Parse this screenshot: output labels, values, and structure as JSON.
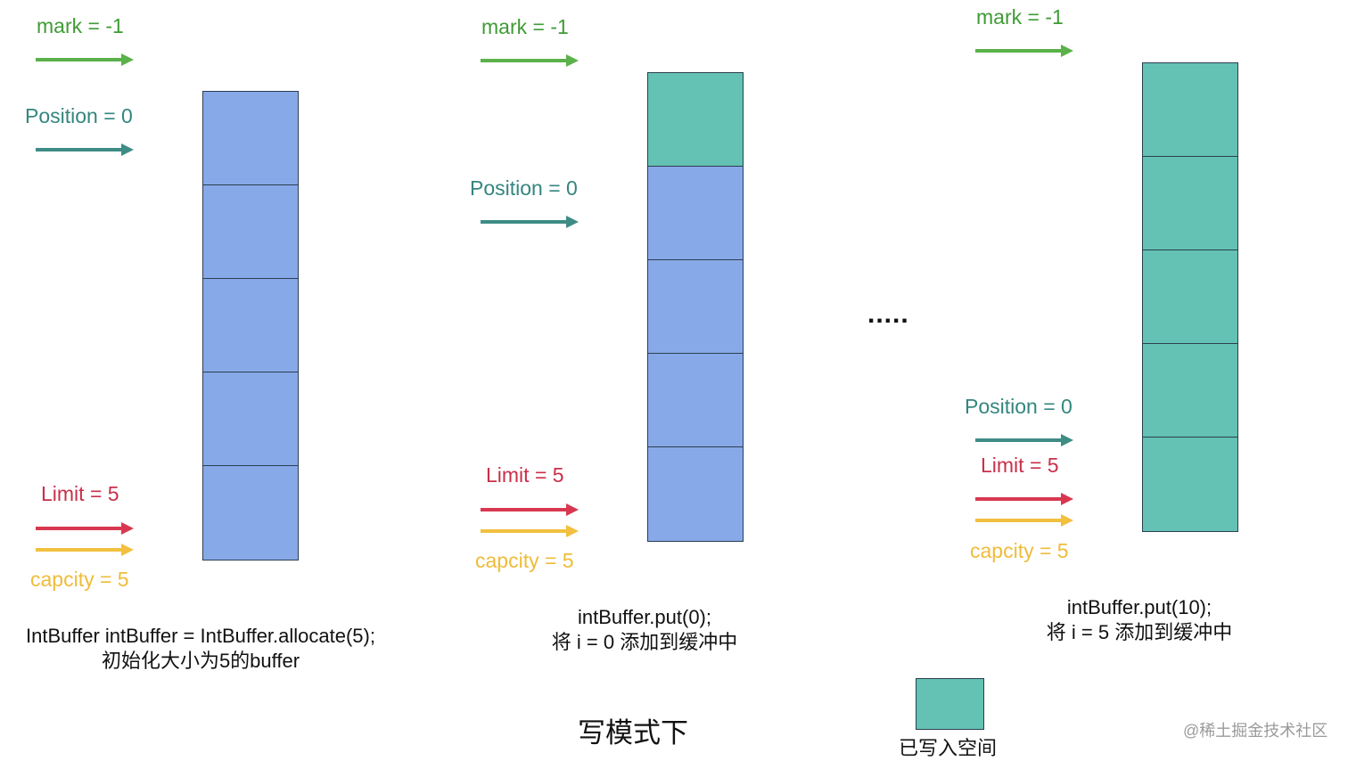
{
  "panels": [
    {
      "mark_label": "mark = -1",
      "position_label": "Position = 0",
      "limit_label": "Limit = 5",
      "capacity_label": "capcity = 5",
      "cells": [
        "empty",
        "empty",
        "empty",
        "empty",
        "empty"
      ],
      "caption_line1": "IntBuffer intBuffer = IntBuffer.allocate(5);",
      "caption_line2": "初始化大小为5的buffer"
    },
    {
      "mark_label": "mark = -1",
      "position_label": "Position = 0",
      "limit_label": "Limit = 5",
      "capacity_label": "capcity = 5",
      "cells": [
        "written",
        "empty",
        "empty",
        "empty",
        "empty"
      ],
      "caption_line1": "intBuffer.put(0);",
      "caption_line2": "将 i = 0 添加到缓冲中"
    },
    {
      "mark_label": "mark = -1",
      "position_label": "Position = 0",
      "limit_label": "Limit = 5",
      "capacity_label": "capcity = 5",
      "cells": [
        "written",
        "written",
        "written",
        "written",
        "written"
      ],
      "caption_line1": "intBuffer.put(10);",
      "caption_line2": "将 i = 5 添加到缓冲中"
    }
  ],
  "ellipsis": ".....",
  "title": "写模式下",
  "legend": {
    "label": "已写入空间"
  },
  "watermark": "@稀土掘金技术社区",
  "colors": {
    "empty_cell": "#87a9e8",
    "written_cell": "#63c2b3",
    "mark": "#5bb14a",
    "position": "#3e8c85",
    "limit": "#d8384f",
    "capacity": "#f2c03e"
  }
}
